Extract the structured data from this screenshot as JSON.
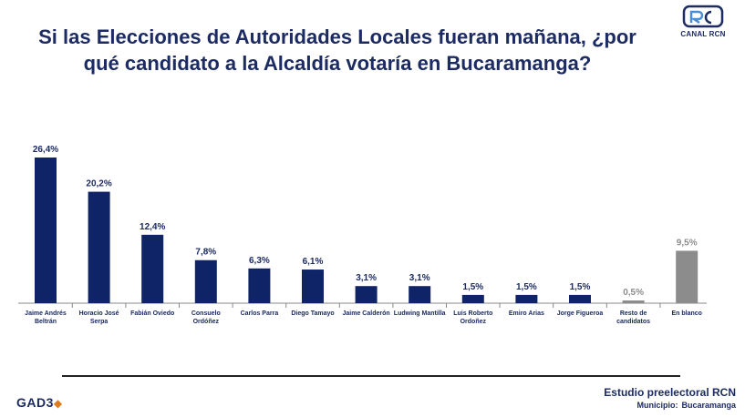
{
  "title": "Si las Elecciones de Autoridades Locales fueran mañana, ¿por qué candidato a la Alcaldía votaría en Bucaramanga?",
  "brand": {
    "logo_text": "CANAL RCN",
    "pollster": "GAD3"
  },
  "footer": {
    "study": "Estudio preelectoral RCN",
    "municipio_label": "Municipio:",
    "municipio_value": "Bucaramanga"
  },
  "colors": {
    "main": "#0f2466",
    "gray": "#8c8c8c",
    "title": "#1c2b63",
    "label": "#1c2b63"
  },
  "chart_data": {
    "type": "bar",
    "title": "Si las Elecciones de Autoridades Locales fueran mañana, ¿por qué candidato a la Alcaldía votaría en Bucaramanga?",
    "xlabel": "",
    "ylabel": "",
    "unit": "%",
    "ylim": [
      0,
      30
    ],
    "grid": false,
    "categories": [
      [
        "Jaime Andrés",
        "Beltrán"
      ],
      [
        "Horacio José",
        "Serpa"
      ],
      [
        "Fabián Oviedo"
      ],
      [
        "Consuelo",
        "Ordóñez"
      ],
      [
        "Carlos Parra"
      ],
      [
        "Diego Tamayo"
      ],
      [
        "Jaime Calderón"
      ],
      [
        "Ludwing Mantilla"
      ],
      [
        "Luis Roberto",
        "Ordoñez"
      ],
      [
        "Emiro Arias"
      ],
      [
        "Jorge Figueroa"
      ],
      [
        "Resto de",
        "candidatos"
      ],
      [
        "En blanco"
      ]
    ],
    "values": [
      26.4,
      20.2,
      12.4,
      7.8,
      6.3,
      6.1,
      3.1,
      3.1,
      1.5,
      1.5,
      1.5,
      0.5,
      9.5
    ],
    "value_labels": [
      "26,4%",
      "20,2%",
      "12,4%",
      "7,8%",
      "6,3%",
      "6,1%",
      "3,1%",
      "3,1%",
      "1,5%",
      "1,5%",
      "1,5%",
      "0,5%",
      "9,5%"
    ],
    "bar_colors": [
      "main",
      "main",
      "main",
      "main",
      "main",
      "main",
      "main",
      "main",
      "main",
      "main",
      "main",
      "gray",
      "gray"
    ]
  }
}
